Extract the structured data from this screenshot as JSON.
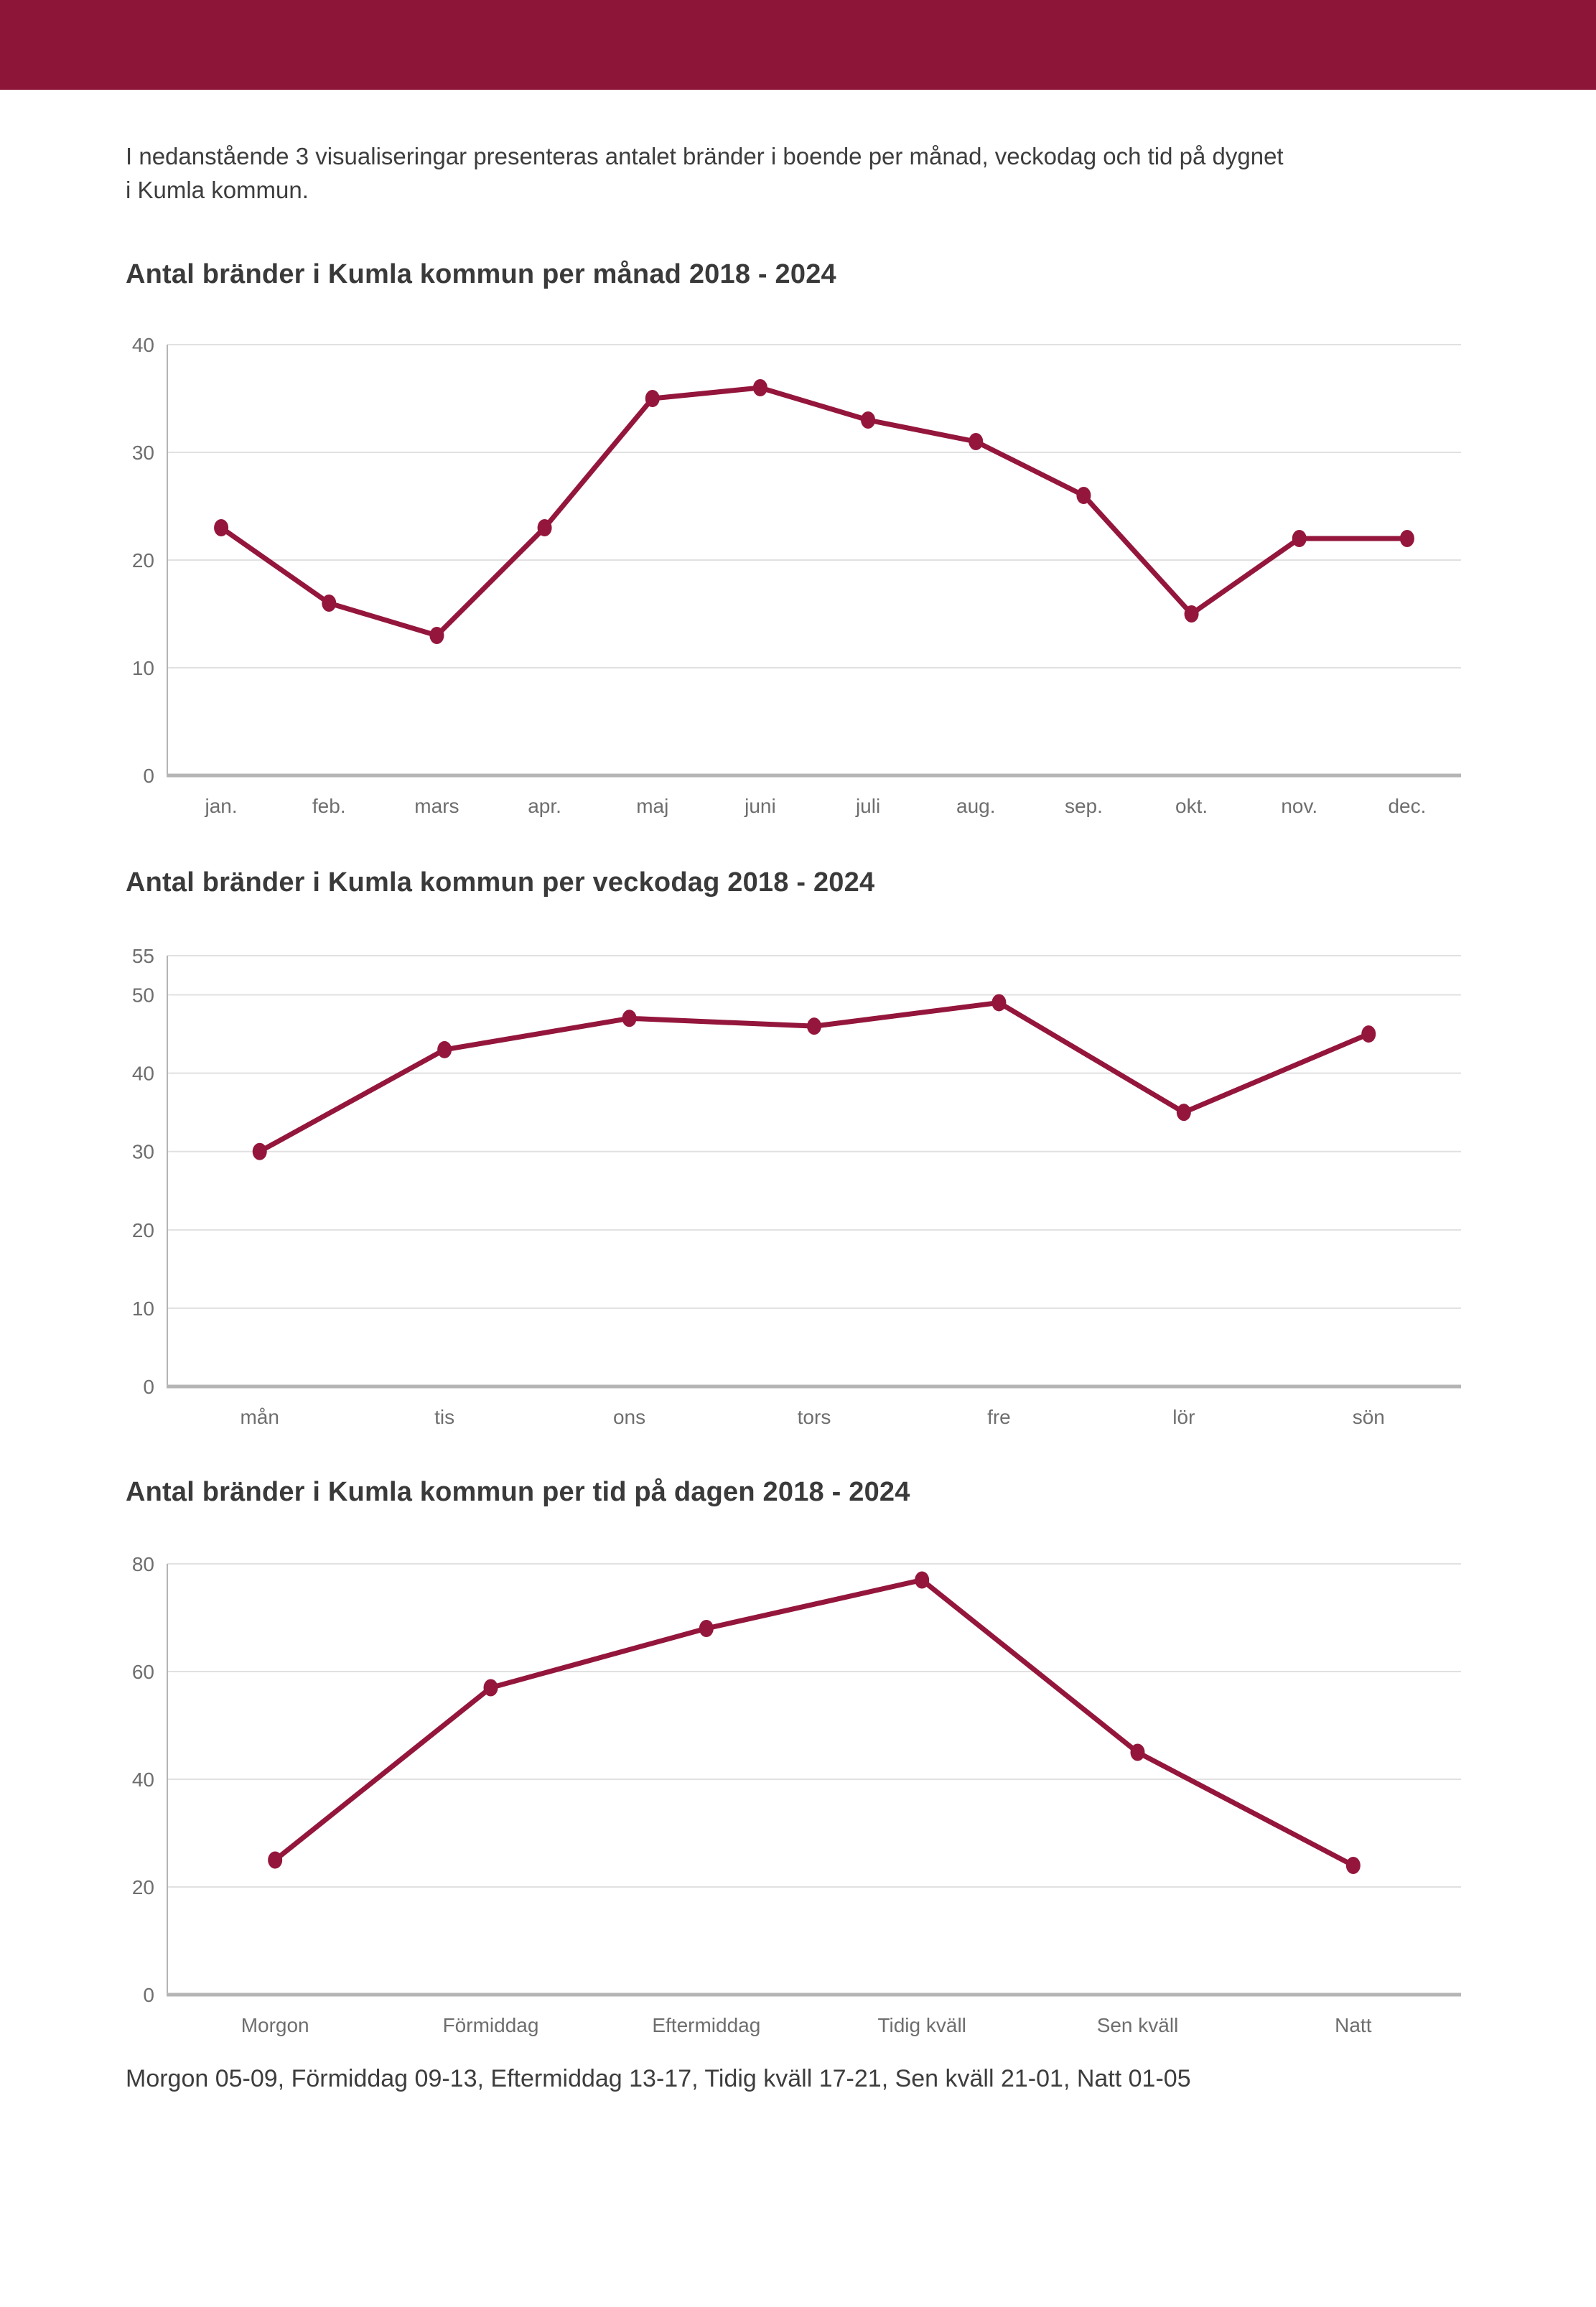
{
  "page": {
    "intro_lines": [
      "I nedanstående 3 visualiseringar presenteras antalet bränder i boende per månad, veckodag och tid på dygnet",
      "i Kumla kommun."
    ],
    "footnote": "Morgon 05-09, Förmiddag 09-13, Eftermiddag 13-17, Tidig kväll 17-21, Sen kväll 21-01, Natt 01-05"
  },
  "colors": {
    "header_bar": "#8C1538",
    "line": "#94163C",
    "grid": "#e1e1e1",
    "axis": "#b5b5b5",
    "tick_label": "#6e6e6e"
  },
  "chart_data": [
    {
      "type": "line",
      "title": "Antal bränder i Kumla kommun per månad 2018 - 2024",
      "categories": [
        "jan.",
        "feb.",
        "mars",
        "apr.",
        "maj",
        "juni",
        "juli",
        "aug.",
        "sep.",
        "okt.",
        "nov.",
        "dec."
      ],
      "values": [
        23,
        16,
        13,
        23,
        35,
        36,
        33,
        31,
        26,
        15,
        22,
        22
      ],
      "yticks": [
        0,
        10,
        20,
        30,
        40
      ],
      "ylim": [
        0,
        40
      ],
      "xlabel": "",
      "ylabel": "",
      "grid": true,
      "legend": "none"
    },
    {
      "type": "line",
      "title": "Antal bränder i Kumla kommun per veckodag 2018 - 2024",
      "categories": [
        "mån",
        "tis",
        "ons",
        "tors",
        "fre",
        "lör",
        "sön"
      ],
      "values": [
        30,
        43,
        47,
        46,
        49,
        35,
        45
      ],
      "yticks": [
        0,
        10,
        20,
        30,
        40,
        50,
        55
      ],
      "ylim": [
        0,
        55
      ],
      "xlabel": "",
      "ylabel": "",
      "grid": true,
      "legend": "none"
    },
    {
      "type": "line",
      "title": "Antal bränder i Kumla kommun per tid på dagen 2018 - 2024",
      "categories": [
        "Morgon",
        "Förmiddag",
        "Eftermiddag",
        "Tidig kväll",
        "Sen kväll",
        "Natt"
      ],
      "values": [
        25,
        57,
        68,
        77,
        45,
        24
      ],
      "yticks": [
        0,
        20,
        40,
        60,
        80
      ],
      "ylim": [
        0,
        80
      ],
      "xlabel": "",
      "ylabel": "",
      "grid": true,
      "legend": "none"
    }
  ]
}
